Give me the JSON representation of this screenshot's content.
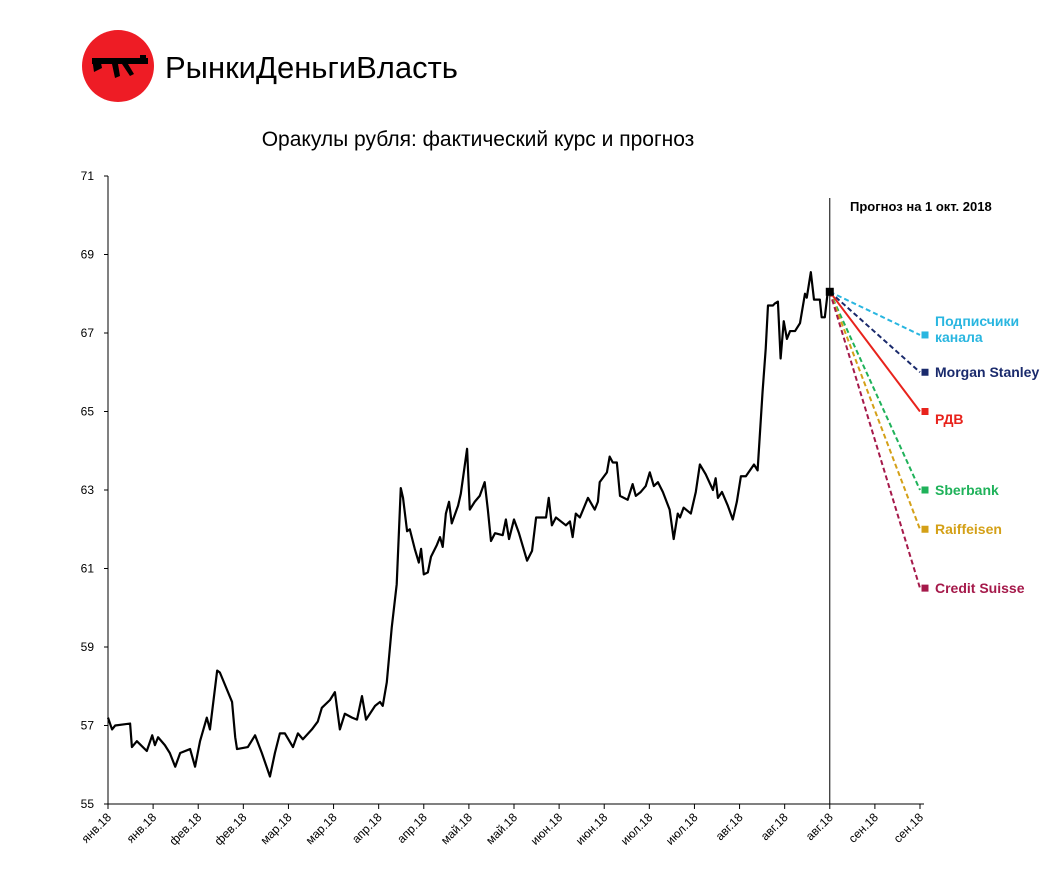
{
  "brand": "РынкиДеньгиВласть",
  "chart_data": {
    "type": "line",
    "title": "Оракулы рубля: фактический курс и прогноз",
    "xlim": [
      0,
      18
    ],
    "xticks": [
      {
        "value": 0,
        "label": "янв.18"
      },
      {
        "value": 1,
        "label": "янв.18"
      },
      {
        "value": 2,
        "label": "фев.18"
      },
      {
        "value": 3,
        "label": "фев.18"
      },
      {
        "value": 4,
        "label": "мар.18"
      },
      {
        "value": 5,
        "label": "мар.18"
      },
      {
        "value": 6,
        "label": "апр.18"
      },
      {
        "value": 7,
        "label": "апр.18"
      },
      {
        "value": 8,
        "label": "май.18"
      },
      {
        "value": 9,
        "label": "май.18"
      },
      {
        "value": 10,
        "label": "июн.18"
      },
      {
        "value": 11,
        "label": "июн.18"
      },
      {
        "value": 12,
        "label": "июл.18"
      },
      {
        "value": 13,
        "label": "июл.18"
      },
      {
        "value": 14,
        "label": "авг.18"
      },
      {
        "value": 15,
        "label": "авг.18"
      },
      {
        "value": 16,
        "label": "авг.18"
      },
      {
        "value": 17,
        "label": "сен.18"
      },
      {
        "value": 18,
        "label": "сен.18"
      }
    ],
    "ylim": [
      55,
      71
    ],
    "yticks": [
      55,
      57,
      59,
      61,
      63,
      65,
      67,
      69,
      71
    ],
    "vline": {
      "x": 16,
      "label": "Прогноз на 1 окт. 2018"
    },
    "actual": {
      "color": "#000000",
      "x": [
        0,
        0.09,
        0.16,
        0.49,
        0.53,
        0.64,
        0.86,
        0.98,
        1.04,
        1.11,
        1.26,
        1.37,
        1.49,
        1.6,
        1.82,
        1.93,
        2.04,
        2.19,
        2.26,
        2.42,
        2.48,
        2.75,
        2.82,
        2.86,
        3.1,
        3.26,
        3.41,
        3.59,
        3.7,
        3.81,
        3.92,
        4.1,
        4.21,
        4.32,
        4.52,
        4.65,
        4.74,
        4.92,
        5.03,
        5.14,
        5.25,
        5.41,
        5.52,
        5.63,
        5.72,
        5.92,
        6.03,
        6.09,
        6.18,
        6.29,
        6.4,
        6.49,
        6.54,
        6.63,
        6.69,
        6.8,
        6.89,
        6.94,
        7.0,
        7.09,
        7.16,
        7.29,
        7.36,
        7.42,
        7.49,
        7.56,
        7.62,
        7.76,
        7.82,
        7.96,
        8.02,
        8.13,
        8.24,
        8.35,
        8.42,
        8.49,
        8.58,
        8.75,
        8.82,
        8.89,
        9.0,
        9.11,
        9.2,
        9.29,
        9.4,
        9.49,
        9.71,
        9.77,
        9.84,
        9.93,
        10.15,
        10.24,
        10.3,
        10.37,
        10.46,
        10.64,
        10.79,
        10.86,
        10.9,
        11.06,
        11.12,
        11.19,
        11.28,
        11.35,
        11.52,
        11.63,
        11.7,
        11.81,
        11.92,
        12.01,
        12.1,
        12.19,
        12.3,
        12.45,
        12.54,
        12.63,
        12.68,
        12.76,
        12.92,
        13.03,
        13.12,
        13.25,
        13.41,
        13.47,
        13.52,
        13.61,
        13.74,
        13.85,
        13.94,
        14.03,
        14.14,
        14.32,
        14.4,
        14.51,
        14.58,
        14.63,
        14.74,
        14.78,
        14.85,
        14.91,
        14.98,
        15.05,
        15.12,
        15.23,
        15.34,
        15.45,
        15.49,
        15.58,
        15.65,
        15.78,
        15.82,
        15.89,
        15.96,
        16.0
      ],
      "values": [
        57.2,
        56.9,
        57.0,
        57.05,
        56.45,
        56.6,
        56.35,
        56.75,
        56.5,
        56.7,
        56.5,
        56.3,
        55.95,
        56.3,
        56.4,
        55.95,
        56.6,
        57.2,
        56.9,
        58.4,
        58.35,
        57.6,
        56.7,
        56.4,
        56.45,
        56.75,
        56.3,
        55.7,
        56.3,
        56.8,
        56.8,
        56.45,
        56.8,
        56.65,
        56.9,
        57.1,
        57.45,
        57.65,
        57.85,
        56.9,
        57.3,
        57.2,
        57.15,
        57.75,
        57.15,
        57.5,
        57.6,
        57.5,
        58.1,
        59.5,
        60.6,
        63.05,
        62.8,
        61.95,
        62.0,
        61.5,
        61.15,
        61.5,
        60.85,
        60.9,
        61.3,
        61.6,
        61.8,
        61.55,
        62.4,
        62.7,
        62.15,
        62.6,
        62.9,
        64.05,
        62.5,
        62.7,
        62.85,
        63.2,
        62.5,
        61.7,
        61.9,
        61.85,
        62.25,
        61.75,
        62.25,
        61.9,
        61.55,
        61.2,
        61.45,
        62.3,
        62.3,
        62.8,
        62.1,
        62.3,
        62.1,
        62.2,
        61.8,
        62.4,
        62.3,
        62.8,
        62.5,
        62.7,
        63.2,
        63.45,
        63.85,
        63.7,
        63.7,
        62.85,
        62.75,
        63.15,
        62.85,
        62.95,
        63.1,
        63.45,
        63.1,
        63.2,
        62.95,
        62.5,
        61.75,
        62.4,
        62.3,
        62.55,
        62.4,
        62.95,
        63.65,
        63.4,
        63.0,
        63.3,
        62.8,
        62.95,
        62.6,
        62.25,
        62.7,
        63.35,
        63.35,
        63.65,
        63.5,
        65.5,
        66.6,
        67.7,
        67.7,
        67.75,
        67.8,
        66.35,
        67.3,
        66.85,
        67.05,
        67.05,
        67.25,
        68.0,
        67.9,
        68.55,
        67.85,
        67.85,
        67.4,
        67.4,
        68.1,
        68.05
      ]
    },
    "series": [
      {
        "name": "Подписчики канала",
        "color": "#29b6e0",
        "dashed": true,
        "x": [
          16,
          18
        ],
        "values": [
          68.05,
          66.95
        ]
      },
      {
        "name": "Morgan Stanley",
        "color": "#1a2a6c",
        "dashed": true,
        "x": [
          16,
          18
        ],
        "values": [
          68.05,
          66.0
        ]
      },
      {
        "name": "РДВ",
        "color": "#e8231c",
        "dashed": false,
        "x": [
          16,
          18
        ],
        "values": [
          68.05,
          65.0
        ]
      },
      {
        "name": "Sberbank",
        "color": "#1fb25a",
        "dashed": true,
        "x": [
          16,
          18
        ],
        "values": [
          68.05,
          63.0
        ]
      },
      {
        "name": "Raiffeisen",
        "color": "#d4a017",
        "dashed": true,
        "x": [
          16,
          18
        ],
        "values": [
          68.05,
          62.0
        ]
      },
      {
        "name": "Credit Suisse",
        "color": "#a5194a",
        "dashed": true,
        "x": [
          16,
          18
        ],
        "values": [
          68.05,
          60.5
        ]
      }
    ]
  }
}
